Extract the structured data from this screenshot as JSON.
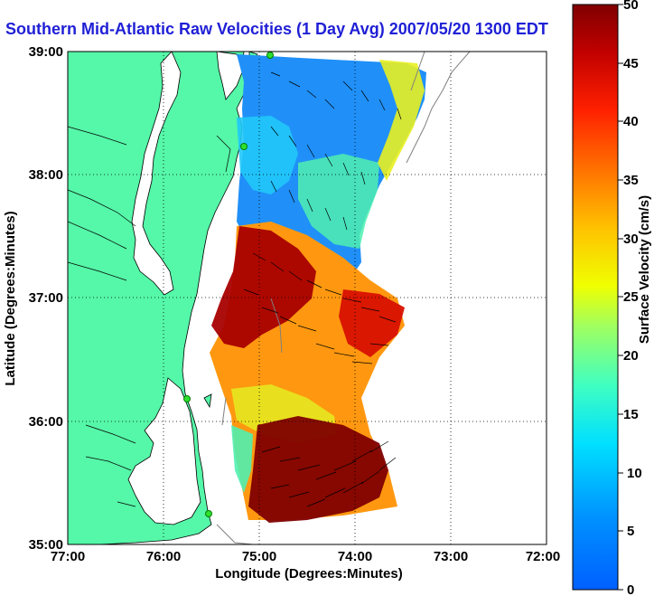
{
  "title": "Southern Mid-Atlantic Raw Velocities (1 Day Avg) 2007/05/20 1300 EDT",
  "chart_data": {
    "type": "heatmap",
    "subject": "ocean surface current velocity map",
    "xlabel": "Longitude (Degrees:Minutes)",
    "ylabel": "Latitude (Degrees:Minutes)",
    "xticks": [
      "77:00",
      "76:00",
      "75:00",
      "74:00",
      "73:00",
      "72:00"
    ],
    "yticks": [
      "39:00",
      "38:00",
      "37:00",
      "36:00",
      "35:00"
    ],
    "xlim": [
      -77,
      -72
    ],
    "ylim": [
      35,
      39
    ],
    "grid": "dotted",
    "colorbar": {
      "label": "Surface Velocity (cm/s)",
      "range": [
        0,
        50
      ],
      "ticks": [
        "50",
        "45",
        "40",
        "35",
        "30",
        "25",
        "20",
        "15",
        "10",
        "5",
        "0"
      ],
      "colormap": "jet"
    },
    "colors": {
      "land": "#55f7a8",
      "ocean_bg": "#ffffff",
      "title": "#1f1fd6"
    }
  }
}
